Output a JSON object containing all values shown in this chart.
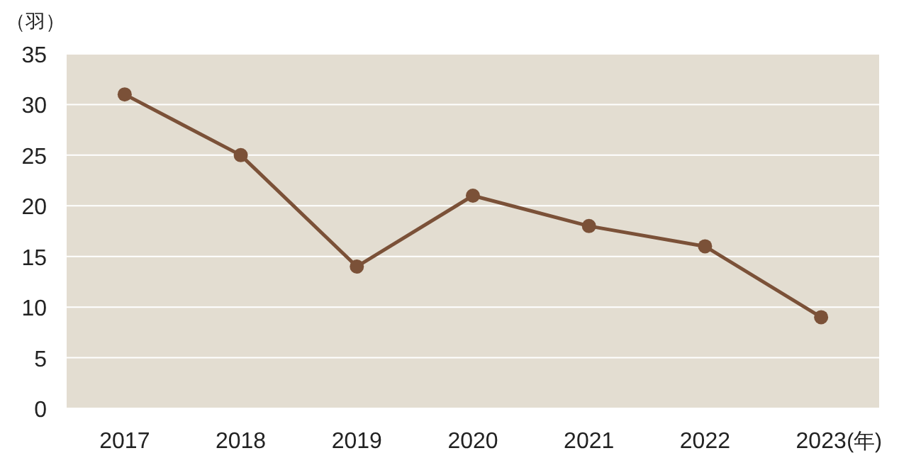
{
  "chart_data": {
    "type": "line",
    "ylabel": "（羽）",
    "xlabel": "(年)",
    "categories": [
      "2017",
      "2018",
      "2019",
      "2020",
      "2021",
      "2022",
      "2023"
    ],
    "series": [
      {
        "color": "#7b5138",
        "values": [
          31,
          25,
          14,
          21,
          18,
          16,
          9
        ]
      }
    ],
    "ylim": [
      0,
      35
    ],
    "yticks": [
      0,
      5,
      10,
      15,
      20,
      25,
      30,
      35
    ],
    "grid": "y",
    "marker": "circle",
    "line_style": "solid"
  }
}
